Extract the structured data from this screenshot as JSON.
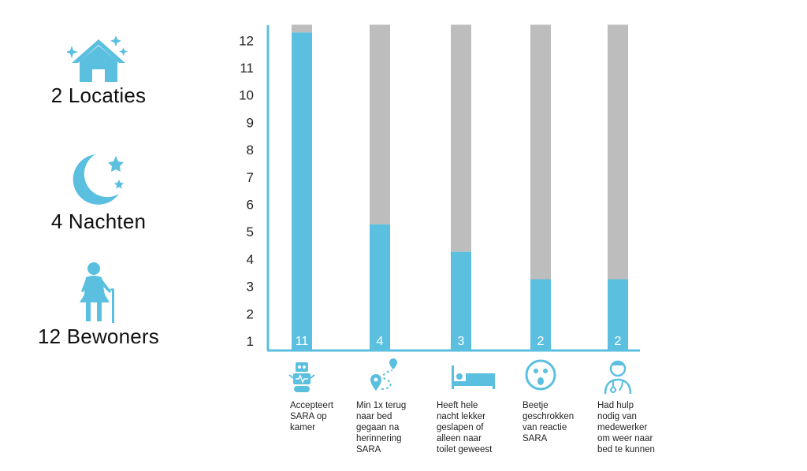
{
  "colors": {
    "accent": "#5bbfe0",
    "bar_rest": "#bdbdbd",
    "axis": "#5bbfe0",
    "text": "#111111"
  },
  "stats": [
    {
      "icon": "house-icon",
      "label": "2 Locaties"
    },
    {
      "icon": "moon-icon",
      "label": "4 Nachten"
    },
    {
      "icon": "elderly-person-icon",
      "label": "12 Bewoners"
    }
  ],
  "chart_data": {
    "type": "bar",
    "stacked": true,
    "categories": [
      "Accepteert SARA op kamer",
      "Min 1x terug naar bed gegaan na herinnering SARA",
      "Heeft hele nacht lekker geslapen of alleen naar toilet geweest",
      "Beetje geschrokken van reactie SARA",
      "Had hulp nodig van medewerker om weer naar bed te kunnen"
    ],
    "category_label_lines": [
      [
        "Accepteert",
        "SARA op",
        "kamer"
      ],
      [
        "Min 1x terug",
        "naar bed",
        "gegaan na",
        "herinnering",
        "SARA"
      ],
      [
        "Heeft hele",
        "nacht lekker",
        "geslapen of",
        "alleen naar",
        "toilet geweest"
      ],
      [
        "Beetje",
        "geschrokken",
        "van reactie",
        "SARA"
      ],
      [
        "Had hulp",
        "nodig van",
        "medewerker",
        "om weer naar",
        "bed te kunnen"
      ]
    ],
    "category_icons": [
      "robot-icon",
      "route-pin-icon",
      "bed-icon",
      "surprised-face-icon",
      "doctor-icon"
    ],
    "values": [
      11,
      4,
      3,
      2,
      2
    ],
    "total": 12,
    "data_labels": [
      "11",
      "4",
      "3",
      "2",
      "2"
    ],
    "yticks": [
      "1",
      "2",
      "3",
      "4",
      "5",
      "6",
      "7",
      "8",
      "9",
      "10",
      "11",
      "12"
    ],
    "ylim": [
      1,
      12
    ],
    "grid": false,
    "legend": "none"
  }
}
